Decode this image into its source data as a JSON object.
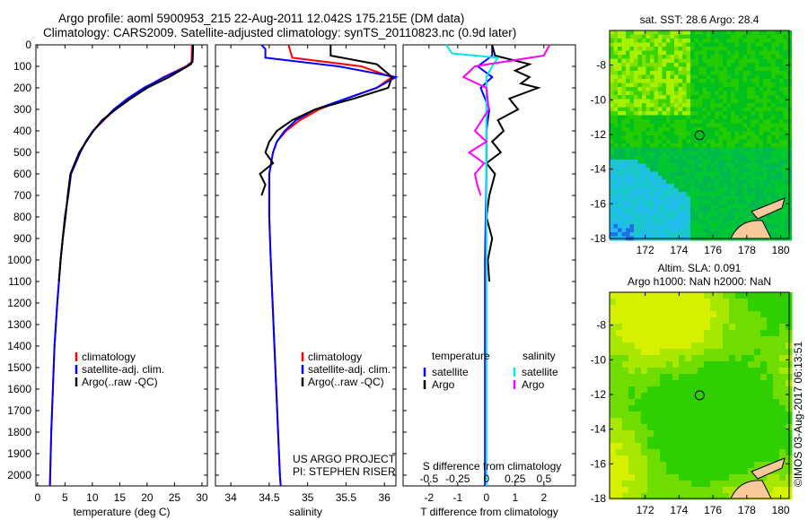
{
  "title_line1": "Argo profile: aoml 5900953_215 22-Aug-2011 12.042S 175.215E (DM data)",
  "title_line2": "Climatology: CARS2009. Satellite-adjusted climatology: synTS_20110823.nc (0.9d later)",
  "footer_credit": "©IMOS 03-Aug-2017 06:13:51",
  "colors": {
    "climatology": "#ff0000",
    "satellite": "#0000ff",
    "argo": "#000000",
    "sal_satellite": "#00e5ee",
    "sal_argo": "#ff00ff"
  },
  "chart_data": [
    {
      "type": "line",
      "name": "temperature",
      "xlabel": "temperature (deg C)",
      "ylabel": "depth",
      "xlim": [
        -0.3,
        31
      ],
      "ylim": [
        2050,
        0
      ],
      "xticks": [
        0,
        5,
        10,
        15,
        20,
        25,
        30
      ],
      "yticks": [
        0,
        100,
        200,
        300,
        400,
        500,
        600,
        700,
        800,
        900,
        1000,
        1100,
        1200,
        1300,
        1400,
        1500,
        1600,
        1700,
        1800,
        1900,
        2000
      ],
      "legend": [
        "climatology",
        "satellite-adj. clim.",
        "Argo(..raw -QC)"
      ],
      "series": [
        {
          "name": "climatology",
          "color": "#ff0000",
          "depth": [
            0,
            80,
            100,
            150,
            200,
            250,
            300,
            350,
            400,
            450,
            500,
            600,
            700,
            800,
            900,
            1000,
            1200,
            1400,
            1600,
            1800,
            2000,
            2050
          ],
          "values": [
            28.2,
            28.1,
            27.1,
            23,
            19.6,
            16.6,
            14.1,
            12.1,
            10.1,
            8.8,
            7.8,
            6.1,
            5.6,
            5.0,
            4.6,
            4.2,
            3.6,
            3.1,
            2.8,
            2.5,
            2.3,
            2.25
          ]
        },
        {
          "name": "satellite-adj. clim.",
          "color": "#0000ff",
          "depth": [
            0,
            80,
            100,
            150,
            200,
            250,
            300,
            350,
            400,
            450,
            500,
            600,
            700,
            800,
            900,
            1000,
            1200,
            1400,
            1600,
            1800,
            2000,
            2050
          ],
          "values": [
            28.4,
            28.3,
            27.3,
            23.2,
            19.4,
            16.4,
            13.9,
            12,
            10.1,
            8.8,
            7.8,
            6.1,
            5.6,
            5.0,
            4.6,
            4.2,
            3.6,
            3.1,
            2.8,
            2.5,
            2.3,
            2.25
          ]
        },
        {
          "name": "Argo(..raw -QC)",
          "color": "#000000",
          "depth": [
            0,
            70,
            90,
            150,
            200,
            250,
            300,
            350,
            400,
            450,
            500,
            550,
            600,
            700,
            800,
            900,
            1000,
            1100
          ],
          "values": [
            28.4,
            28.3,
            28.0,
            24.0,
            20.0,
            17.0,
            14.3,
            11.8,
            10.2,
            8.9,
            7.6,
            6.8,
            6.0,
            5.5,
            5.1,
            4.6,
            4.2,
            3.9
          ]
        }
      ]
    },
    {
      "type": "line",
      "name": "salinity",
      "xlabel": "salinity",
      "ylabel": "depth",
      "xlim": [
        33.8,
        36.15
      ],
      "ylim": [
        2050,
        0
      ],
      "xticks": [
        34,
        34.5,
        35,
        35.5,
        36
      ],
      "legend": [
        "climatology",
        "satellite-adj. clim.",
        "Argo(..raw -QC)"
      ],
      "annotation": [
        "US ARGO PROJECT",
        "PI: STEPHEN RISER"
      ],
      "series": [
        {
          "name": "climatology",
          "color": "#ff0000",
          "depth": [
            0,
            60,
            100,
            150,
            200,
            250,
            300,
            350,
            400,
            450,
            500,
            600,
            800,
            1000,
            1500,
            2000,
            2050
          ],
          "values": [
            34.75,
            34.8,
            35.7,
            36.1,
            35.9,
            35.5,
            35.15,
            34.9,
            34.72,
            34.6,
            34.55,
            34.5,
            34.5,
            34.52,
            34.58,
            34.64,
            34.65
          ]
        },
        {
          "name": "satellite-adj. clim.",
          "color": "#0000ff",
          "depth": [
            0,
            20,
            60,
            100,
            150,
            200,
            250,
            300,
            350,
            400,
            450,
            500,
            600,
            800,
            1000,
            1500,
            2000,
            2050
          ],
          "values": [
            34.4,
            34.45,
            34.45,
            35.4,
            36.15,
            35.9,
            35.5,
            35.1,
            34.85,
            34.7,
            34.6,
            34.55,
            34.5,
            34.5,
            34.52,
            34.58,
            34.64,
            34.65
          ]
        },
        {
          "name": "Argo(..raw -QC)",
          "color": "#000000",
          "depth": [
            0,
            50,
            90,
            150,
            200,
            250,
            300,
            350,
            400,
            450,
            500,
            550,
            600,
            650,
            700
          ],
          "values": [
            35.3,
            35.3,
            35.9,
            36.1,
            36.05,
            35.6,
            35.1,
            34.8,
            34.6,
            34.5,
            34.45,
            34.55,
            34.38,
            34.45,
            34.4
          ]
        }
      ]
    },
    {
      "type": "line",
      "name": "difference",
      "xlabel": "T difference from climatology",
      "x2label": "S difference from climatology",
      "xlim": [
        -2.9,
        3.1
      ],
      "ylim": [
        2050,
        0
      ],
      "xticks": [
        -2,
        -1,
        0,
        1,
        2
      ],
      "x2ticks": [
        "-0.5",
        "-0.25",
        "0",
        "0.25",
        "0.5"
      ],
      "legend": {
        "temperature": [
          "satellite",
          "Argo"
        ],
        "salinity": [
          "satellite",
          "Argo"
        ],
        "temperature_title": "temperature",
        "salinity_title": "salinity"
      },
      "series": [
        {
          "name": "T satellite",
          "color": "#0000ff",
          "depth": [
            0,
            50,
            100,
            150,
            200,
            300,
            400,
            600,
            1000,
            2050
          ],
          "values": [
            0.2,
            0.2,
            -0.3,
            0.2,
            -0.2,
            0.1,
            0,
            0,
            -0.05,
            -0.05
          ]
        },
        {
          "name": "T Argo",
          "color": "#000000",
          "depth": [
            0,
            50,
            90,
            120,
            150,
            180,
            200,
            250,
            300,
            350,
            400,
            450,
            500,
            550,
            600,
            700,
            800,
            900,
            1000,
            1100
          ],
          "values": [
            0.2,
            0.3,
            1.5,
            1.0,
            1.5,
            1.2,
            1.8,
            0.8,
            1.1,
            0.4,
            0.6,
            0.2,
            0.5,
            0.0,
            0.3,
            0.1,
            0.0,
            0.2,
            0.05,
            0.1
          ]
        },
        {
          "name": "S satellite",
          "color": "#00e5ee",
          "depth": [
            0,
            40,
            60,
            100,
            150,
            200,
            400,
            800,
            2050
          ],
          "values": [
            -0.35,
            -0.3,
            0.1,
            0.05,
            0,
            0,
            0,
            0,
            0
          ]
        },
        {
          "name": "S Argo",
          "color": "#ff00ff",
          "depth": [
            0,
            50,
            100,
            150,
            200,
            300,
            400,
            450,
            500,
            550,
            600,
            650,
            700
          ],
          "values": [
            0.55,
            0.5,
            -0.1,
            -0.2,
            0.0,
            0.02,
            -0.1,
            0.0,
            -0.15,
            -0.02,
            -0.1,
            -0.08,
            -0.05
          ]
        }
      ]
    },
    {
      "type": "heatmap",
      "name": "sst-map",
      "title": "sat. SST: 28.6 Argo: 28.4",
      "xlim": [
        169.9,
        180.5
      ],
      "ylim": [
        -18,
        -6
      ],
      "xticks": [
        172,
        174,
        176,
        178,
        180
      ],
      "yticks": [
        -8,
        -10,
        -12,
        -14,
        -16,
        -18
      ],
      "marker": [
        175.215,
        -12.042
      ]
    },
    {
      "type": "heatmap",
      "name": "sla-map",
      "title": [
        "Altim. SLA: 0.091",
        "Argo h1000: NaN h2000: NaN"
      ],
      "xlim": [
        169.9,
        180.5
      ],
      "ylim": [
        -18,
        -6.1
      ],
      "xticks": [
        172,
        174,
        176,
        178,
        180
      ],
      "yticks": [
        -8,
        -10,
        -12,
        -14,
        -16,
        -18
      ],
      "marker": [
        175.215,
        -12.042
      ]
    }
  ]
}
